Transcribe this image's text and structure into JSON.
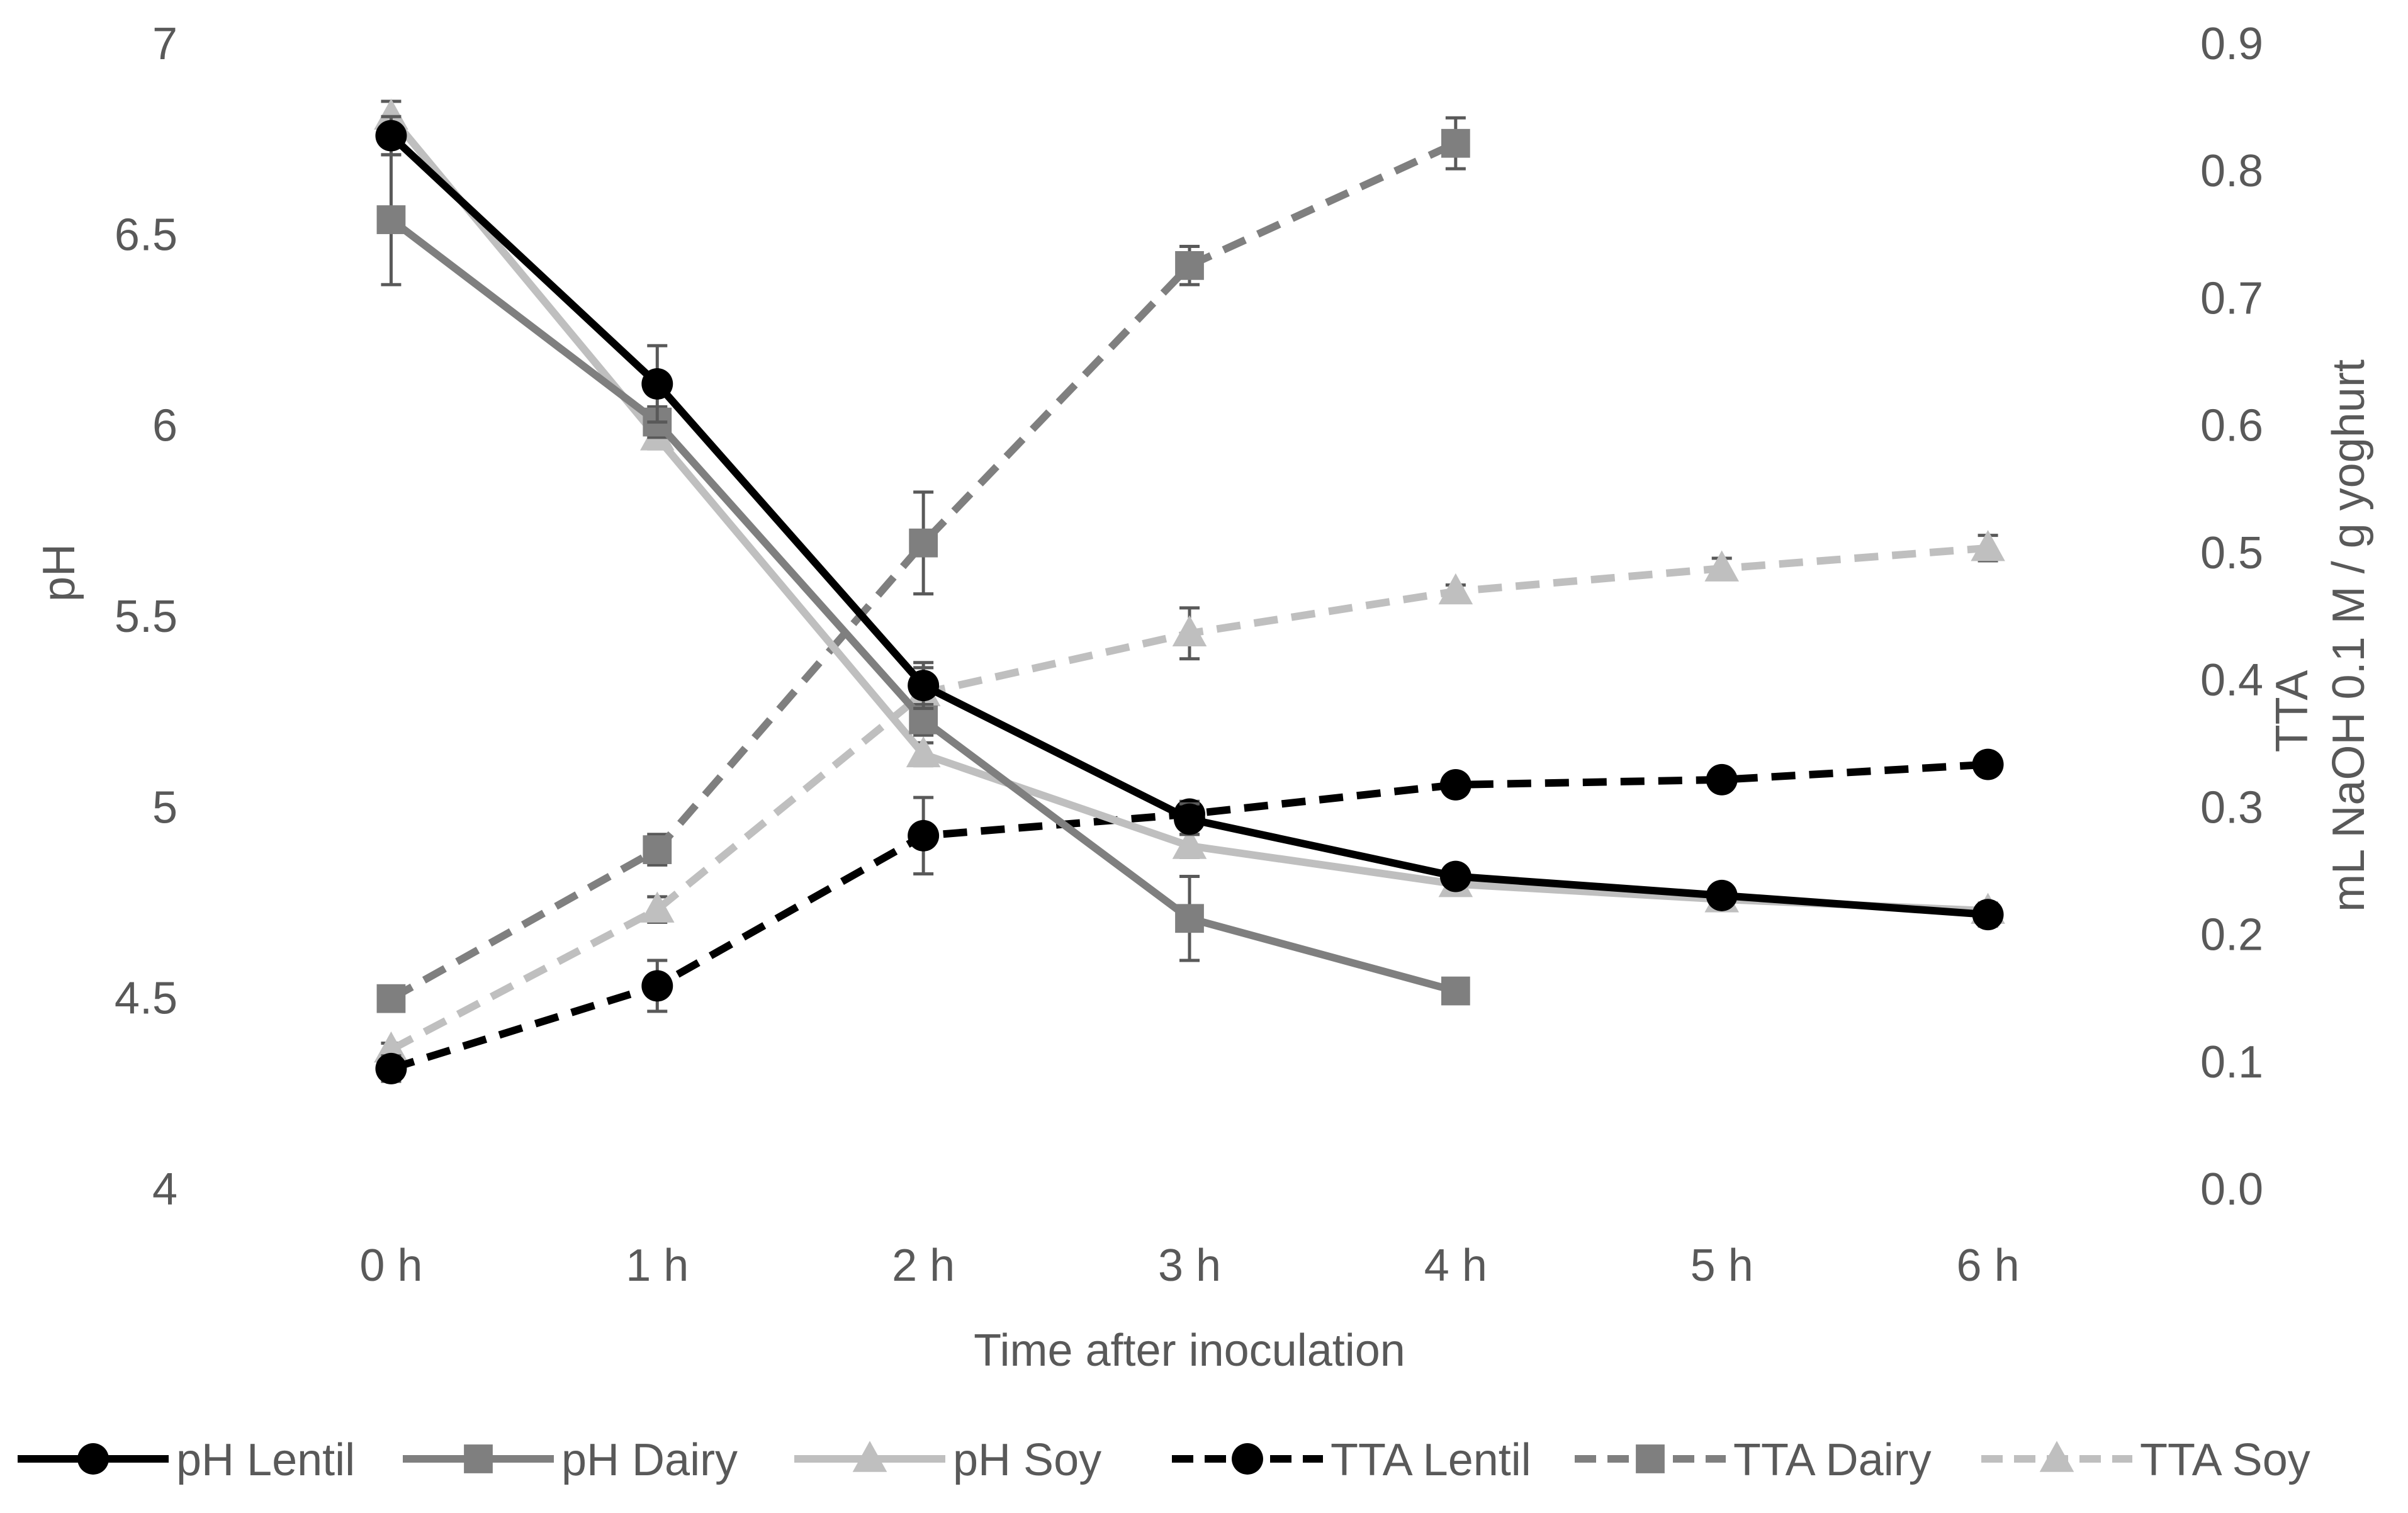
{
  "chart_data": {
    "type": "line",
    "title": "",
    "xlabel": "Time after inoculation",
    "ylabel_left": "pH",
    "ylabel_right_line1": "TTA",
    "ylabel_right_line2": "mL NaOH 0.1 M / g yoghurt",
    "categories": [
      "0 h",
      "1 h",
      "2 h",
      "3 h",
      "4 h",
      "5 h",
      "6 h"
    ],
    "y_left": {
      "min": 4,
      "max": 7,
      "ticks": [
        "4",
        "4.5",
        "5",
        "5.5",
        "6",
        "6.5",
        "7"
      ]
    },
    "y_right": {
      "min": 0,
      "max": 0.9,
      "ticks": [
        "0.0",
        "0.1",
        "0.2",
        "0.3",
        "0.4",
        "0.5",
        "0.6",
        "0.7",
        "0.8",
        "0.9"
      ]
    },
    "grid": false,
    "legend_position": "bottom",
    "colors": {
      "black": "#000000",
      "dark_gray": "#7f7f7f",
      "light_gray": "#bfbfbf",
      "axis_text": "#595959"
    },
    "series": [
      {
        "name": "pH Lentil",
        "axis": "left",
        "marker": "circle",
        "dashed": false,
        "color": "#000000",
        "values": [
          6.76,
          6.11,
          5.32,
          4.97,
          4.82,
          4.77,
          4.72
        ],
        "errors": [
          0.05,
          0.1,
          0.06,
          0.04,
          0.02,
          0.02,
          0.03
        ]
      },
      {
        "name": "pH Dairy",
        "axis": "left",
        "marker": "square",
        "dashed": false,
        "color": "#7f7f7f",
        "values": [
          6.54,
          6.01,
          5.23,
          4.71,
          4.52,
          null,
          null
        ],
        "errors": [
          0.17,
          0.04,
          0.04,
          0.11,
          0.0,
          null,
          null
        ]
      },
      {
        "name": "pH Soy",
        "axis": "left",
        "marker": "triangle",
        "dashed": false,
        "color": "#bfbfbf",
        "values": [
          6.81,
          5.97,
          5.14,
          4.9,
          4.8,
          4.76,
          4.73
        ],
        "errors": [
          0.04,
          0.03,
          0.03,
          0.03,
          0.02,
          0.02,
          0.02
        ]
      },
      {
        "name": "TTA Lentil",
        "axis": "right",
        "marker": "circle",
        "dashed": false,
        "dash_label": "dashed",
        "color": "#000000",
        "values": [
          0.095,
          0.16,
          0.278,
          0.295,
          0.318,
          0.322,
          0.334
        ],
        "errors": [
          0.01,
          0.02,
          0.03,
          0.01,
          0.005,
          0.005,
          0.005
        ]
      },
      {
        "name": "TTA Dairy",
        "axis": "right",
        "marker": "square",
        "dashed": false,
        "dash_label": "dashed",
        "color": "#7f7f7f",
        "values": [
          0.15,
          0.267,
          0.508,
          0.726,
          0.822,
          null,
          null
        ],
        "errors": [
          0.005,
          0.012,
          0.04,
          0.015,
          0.02,
          null,
          null
        ]
      },
      {
        "name": "TTA Soy",
        "axis": "right",
        "marker": "triangle",
        "dashed": false,
        "dash_label": "dashed",
        "color": "#bfbfbf",
        "values": [
          0.11,
          0.22,
          0.39,
          0.437,
          0.47,
          0.488,
          0.504
        ],
        "errors": [
          0.005,
          0.01,
          0.02,
          0.02,
          0.005,
          0.008,
          0.01
        ]
      }
    ]
  }
}
